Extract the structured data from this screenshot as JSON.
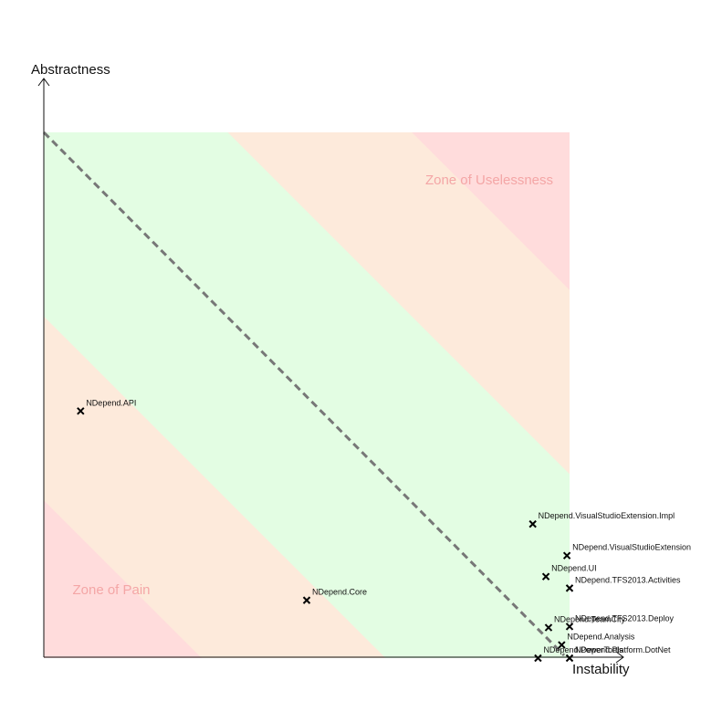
{
  "chart_data": {
    "type": "scatter",
    "xlabel": "Instability",
    "ylabel": "Abstractness",
    "xlim": [
      0,
      1
    ],
    "ylim": [
      0,
      1
    ],
    "grid": false,
    "zones": [
      {
        "label": "Zone of Uselessness",
        "color": "#ffdcdc"
      },
      {
        "label": "Zone of Pain",
        "color": "#ffdcdc"
      }
    ],
    "band_colors": {
      "main_sequence": "#e3fde3",
      "transition": "#fdeadb",
      "danger": "#ffdcdc"
    },
    "points": [
      {
        "label": "NDepend.API",
        "x": 0.07,
        "y": 0.47
      },
      {
        "label": "NDepend.Core",
        "x": 0.5,
        "y": 0.11
      },
      {
        "label": "NDepend.VisualStudioExtension.Impl",
        "x": 0.93,
        "y": 0.255
      },
      {
        "label": "NDepend.VisualStudioExtension",
        "x": 0.995,
        "y": 0.195
      },
      {
        "label": "NDepend.UI",
        "x": 0.955,
        "y": 0.155
      },
      {
        "label": "NDepend.TFS2013.Activities",
        "x": 1.0,
        "y": 0.133
      },
      {
        "label": "NDepend.TFS2013.Deploy",
        "x": 1.0,
        "y": 0.06
      },
      {
        "label": "NDepend.TeamCity",
        "x": 0.96,
        "y": 0.058
      },
      {
        "label": "NDepend.Analysis",
        "x": 0.985,
        "y": 0.025
      },
      {
        "label": "NDepend.PowerTools",
        "x": 0.94,
        "y": 0.0
      },
      {
        "label": "NDepend.Platform.DotNet",
        "x": 1.0,
        "y": 0.0
      }
    ]
  }
}
